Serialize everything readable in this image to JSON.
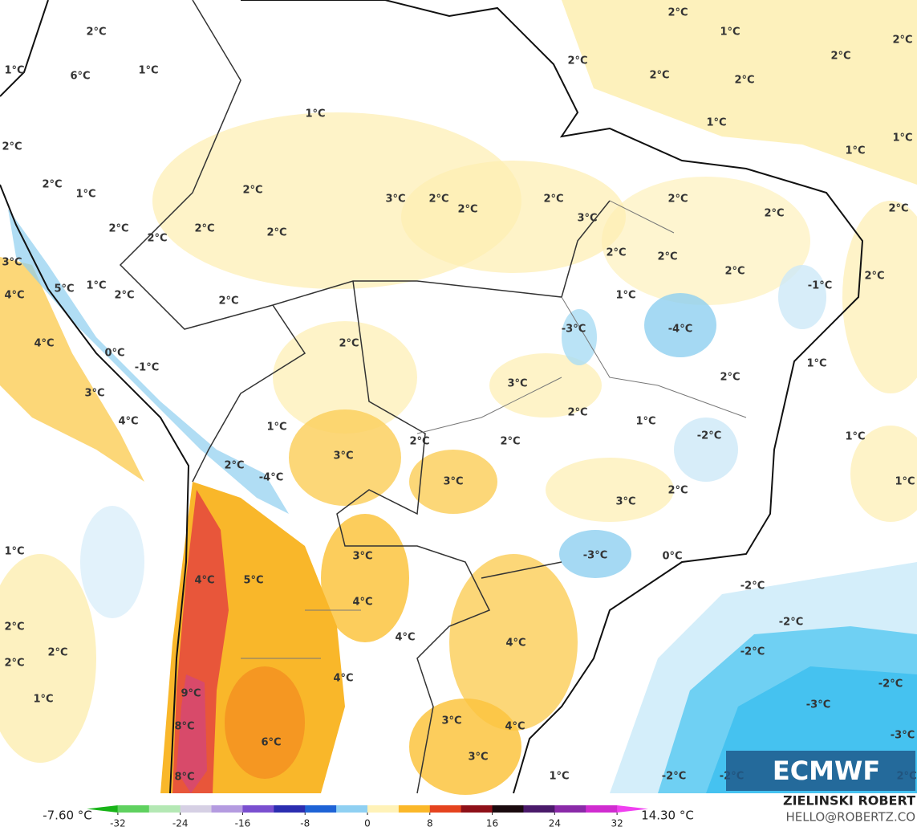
{
  "map": {
    "contour_labels": [
      "2°C",
      "1°C",
      "2°C",
      "2°C",
      "6°C",
      "1°C",
      "1°C",
      "2°C",
      "2°C",
      "2°C",
      "2°C",
      "1°C",
      "1°C",
      "1°C",
      "1°C",
      "2°C",
      "2°C",
      "1°C",
      "2°C",
      "3°C",
      "2°C",
      "2°C",
      "2°C",
      "2°C",
      "2°C",
      "2°C",
      "3°C",
      "2°C",
      "2°C",
      "2°C",
      "2°C",
      "2°C",
      "2°C",
      "2°C",
      "2°C",
      "3°C",
      "5°C",
      "1°C",
      "2°C",
      "2°C",
      "1°C",
      "-1°C",
      "4°C",
      "-3°C",
      "-4°C",
      "4°C",
      "0°C",
      "2°C",
      "-1°C",
      "1°C",
      "3°C",
      "2°C",
      "3°C",
      "2°C",
      "1°C",
      "4°C",
      "1°C",
      "-2°C",
      "1°C",
      "2°C",
      "2°C",
      "3°C",
      "2°C",
      "-4°C",
      "3°C",
      "2°C",
      "1°C",
      "3°C",
      "1°C",
      "3°C",
      "-3°C",
      "0°C",
      "4°C",
      "5°C",
      "-2°C",
      "4°C",
      "-2°C",
      "2°C",
      "2°C",
      "-2°C",
      "4°C",
      "4°C",
      "2°C",
      "4°C",
      "-2°C",
      "9°C",
      "1°C",
      "-3°C",
      "3°C",
      "8°C",
      "4°C",
      "6°C",
      "-3°C",
      "3°C",
      "8°C",
      "1°C",
      "-2°C",
      "-2°C",
      "2°C"
    ],
    "min_label": "-7.60 °C",
    "max_label": "14.30 °C",
    "colorbar": {
      "ticks": [
        -32,
        -24,
        -16,
        -8,
        0,
        8,
        16,
        24,
        32
      ],
      "colors": [
        "#18b418",
        "#5fd15f",
        "#b4e8b4",
        "#d6d0e4",
        "#b49be0",
        "#7a4fd0",
        "#2b2db0",
        "#1e63d6",
        "#8fd0f2",
        "#fff2b8",
        "#fbb829",
        "#e5431e",
        "#8e1018",
        "#1a0a0e",
        "#4a1a6a",
        "#8a2aa8",
        "#d02cd0",
        "#f040f0"
      ]
    },
    "credit": {
      "name": "ZIELINSKI ROBERT",
      "contact": "HELLO@ROBERTZ.CO"
    },
    "logo": "ECMWF"
  }
}
